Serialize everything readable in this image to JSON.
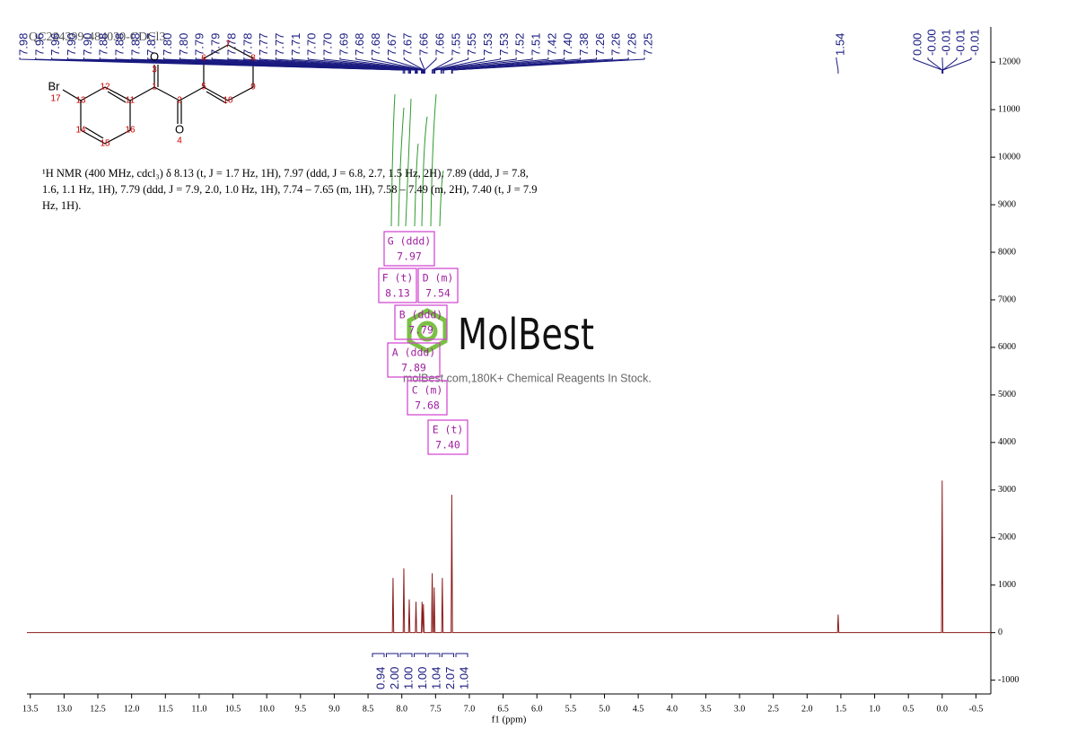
{
  "chart_data": {
    "type": "nmr",
    "title": "QC284399-484030-CDCl3",
    "x_label": "f1 (ppm)",
    "xlim": [
      13.55,
      -0.72
    ],
    "ylim": [
      -1290,
      12740
    ],
    "xticks": [
      13.5,
      {
        "value": 13,
        "label": "13.0"
      },
      12.5,
      {
        "value": 12,
        "label": "12.0"
      },
      11.5,
      {
        "value": 11,
        "label": "11.0"
      },
      10.5,
      {
        "value": 10,
        "label": "10.0"
      },
      9.5,
      {
        "value": 9,
        "label": "9.0"
      },
      8.5,
      {
        "value": 8,
        "label": "8.0"
      },
      7.5,
      {
        "value": 7,
        "label": "7.0"
      },
      6.5,
      {
        "value": 6,
        "label": "6.0"
      },
      5.5,
      {
        "value": 5,
        "label": "5.0"
      },
      4.5,
      {
        "value": 4,
        "label": "4.0"
      },
      3.5,
      {
        "value": 3,
        "label": "3.0"
      },
      2.5,
      {
        "value": 2,
        "label": "2.0"
      },
      1.5,
      {
        "value": 1,
        "label": "1.0"
      },
      0.5,
      {
        "value": 0,
        "label": "0.0"
      },
      -0.5
    ],
    "yticks": [
      -1000,
      0,
      1000,
      2000,
      3000,
      4000,
      5000,
      6000,
      7000,
      8000,
      9000,
      10000,
      11000,
      12000
    ],
    "series": [
      {
        "color": "#8b1a1a",
        "x": [
          13.55,
          8.14,
          8.13,
          8.12,
          7.98,
          7.97,
          7.96,
          7.9,
          7.89,
          7.88,
          7.8,
          7.79,
          7.78,
          7.71,
          7.7,
          7.69,
          7.69,
          7.68,
          7.67,
          7.56,
          7.55,
          7.54,
          7.53,
          7.52,
          7.51,
          7.41,
          7.4,
          7.39,
          7.27,
          7.26,
          7.25,
          1.55,
          1.54,
          1.53,
          0.01,
          0.0,
          -0.01,
          -0.72
        ],
        "values": [
          0,
          0,
          1150,
          0,
          0,
          1350,
          0,
          0,
          700,
          0,
          0,
          650,
          0,
          0,
          650,
          0,
          0,
          600,
          0,
          0,
          1250,
          0,
          0,
          950,
          0,
          0,
          1150,
          0,
          0,
          2900,
          0,
          0,
          380,
          0,
          0,
          3200,
          0,
          0
        ]
      }
    ],
    "peak_labels": [
      "7.98",
      "7.96",
      "7.96",
      "7.90",
      "7.90",
      "7.88",
      "7.88",
      "7.88",
      "7.87",
      "7.80",
      "7.80",
      "7.79",
      "7.79",
      "7.78",
      "7.78",
      "7.77",
      "7.77",
      "7.71",
      "7.70",
      "7.70",
      "7.69",
      "7.68",
      "7.68",
      "7.67",
      "7.67",
      "7.66",
      "7.66",
      "7.55",
      "7.55",
      "7.53",
      "7.53",
      "7.52",
      "7.51",
      "7.42",
      "7.40",
      "7.38",
      "7.26",
      "7.26",
      "7.26",
      "7.25",
      "1.54",
      "0.00",
      "-0.00",
      "-0.01",
      "-0.01",
      "-0.01"
    ],
    "integrals": [
      "0.94",
      "2.00",
      "1.00",
      "1.00",
      "1.04",
      "2.07",
      "1.04"
    ],
    "multiplets": [
      {
        "name": "G (ddd)",
        "shift": "7.97"
      },
      {
        "name": "F (t)",
        "shift": "8.13"
      },
      {
        "name": "D (m)",
        "shift": "7.54"
      },
      {
        "name": "B (ddd)",
        "shift": "7.79"
      },
      {
        "name": "A (ddd)",
        "shift": "7.89"
      },
      {
        "name": "C (m)",
        "shift": "7.68"
      },
      {
        "name": "E (t)",
        "shift": "7.40"
      }
    ]
  },
  "structure": {
    "atoms": [
      "Br",
      "17",
      "13",
      "12",
      "11",
      "1",
      "O",
      "3",
      "2",
      "O",
      "4",
      "5",
      "6",
      "7",
      "8",
      "9",
      "10",
      "14",
      "15",
      "16"
    ]
  },
  "description": "¹H NMR (400 MHz, cdcl₃) δ 8.13 (t, J = 1.7 Hz, 1H), 7.97 (ddd, J = 6.8, 2.7, 1.5 Hz, 2H), 7.89 (ddd, J = 7.8, 1.6, 1.1 Hz, 1H), 7.79 (ddd, J = 7.9, 2.0, 1.0 Hz, 1H), 7.74 – 7.65 (m, 1H), 7.58 – 7.49 (m, 2H), 7.40 (t, J = 7.9 Hz, 1H).",
  "watermark": {
    "title": "MolBest",
    "subtitle": "molBest.com,180K+ Chemical Reagents In Stock."
  }
}
